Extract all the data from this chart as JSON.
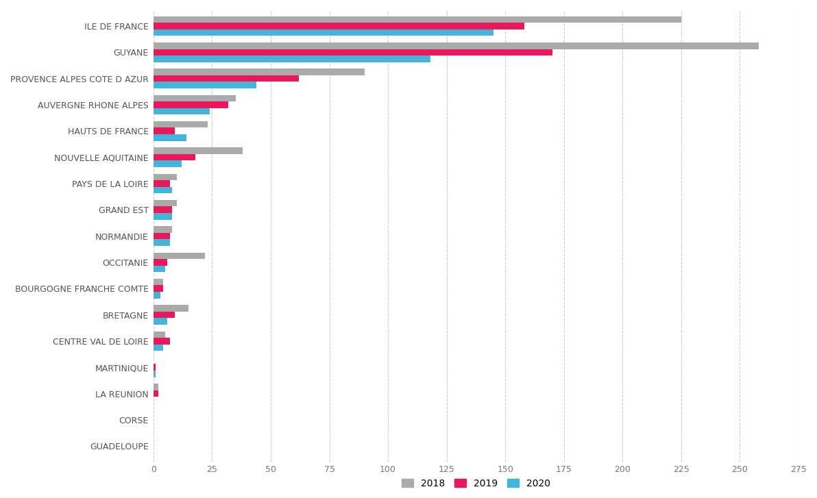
{
  "regions": [
    "ILE DE FRANCE",
    "GUYANE",
    "PROVENCE ALPES COTE D AZUR",
    "AUVERGNE RHONE ALPES",
    "HAUTS DE FRANCE",
    "NOUVELLE AQUITAINE",
    "PAYS DE LA LOIRE",
    "GRAND EST",
    "NORMANDIE",
    "OCCITANIE",
    "BOURGOGNE FRANCHE COMTE",
    "BRETAGNE",
    "CENTRE VAL DE LOIRE",
    "MARTINIQUE",
    "LA REUNION",
    "CORSE",
    "GUADELOUPE"
  ],
  "values_2018": [
    225,
    258,
    90,
    35,
    23,
    38,
    10,
    10,
    8,
    22,
    4,
    15,
    5,
    0,
    2,
    0,
    0
  ],
  "values_2019": [
    158,
    170,
    62,
    32,
    9,
    18,
    7,
    8,
    7,
    6,
    4,
    9,
    7,
    1,
    2,
    0,
    0
  ],
  "values_2020": [
    145,
    118,
    44,
    24,
    14,
    12,
    8,
    8,
    7,
    5,
    3,
    6,
    4,
    1,
    0,
    0,
    0
  ],
  "color_2018": "#aaaaaa",
  "color_2019": "#e8185a",
  "color_2020": "#45b4d9",
  "xlim": [
    0,
    275
  ],
  "xticks": [
    0,
    25,
    50,
    75,
    100,
    125,
    150,
    175,
    200,
    225,
    250,
    275
  ],
  "background_color": "#ffffff",
  "grid_color": "#cccccc",
  "bar_height": 0.25,
  "figsize": [
    11.92,
    7.27
  ]
}
